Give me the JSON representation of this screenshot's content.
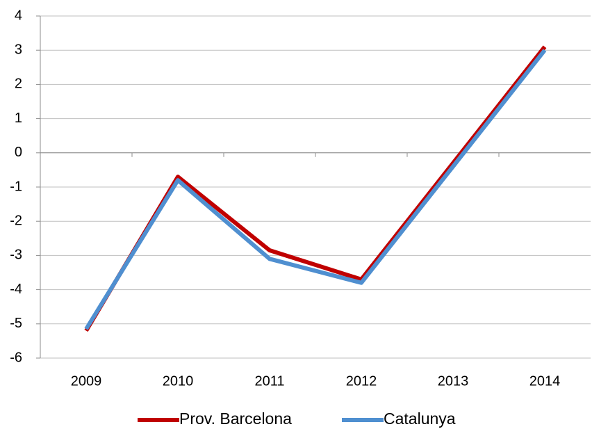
{
  "chart_data": {
    "type": "line",
    "categories": [
      "2009",
      "2010",
      "2011",
      "2012",
      "2013",
      "2014"
    ],
    "series": [
      {
        "name": "Prov. Barcelona",
        "color": "#c00000",
        "values": [
          -5.2,
          -0.7,
          -2.85,
          -3.7,
          -0.3,
          3.1
        ]
      },
      {
        "name": "Catalunya",
        "color": "#4f8fd0",
        "values": [
          -5.15,
          -0.8,
          -3.1,
          -3.8,
          -0.4,
          3.0
        ]
      }
    ],
    "ylim": [
      -6,
      4
    ],
    "yticks": [
      -6,
      -5,
      -4,
      -3,
      -2,
      -1,
      0,
      1,
      2,
      3,
      4
    ],
    "grid": true,
    "legend": "bottom"
  }
}
